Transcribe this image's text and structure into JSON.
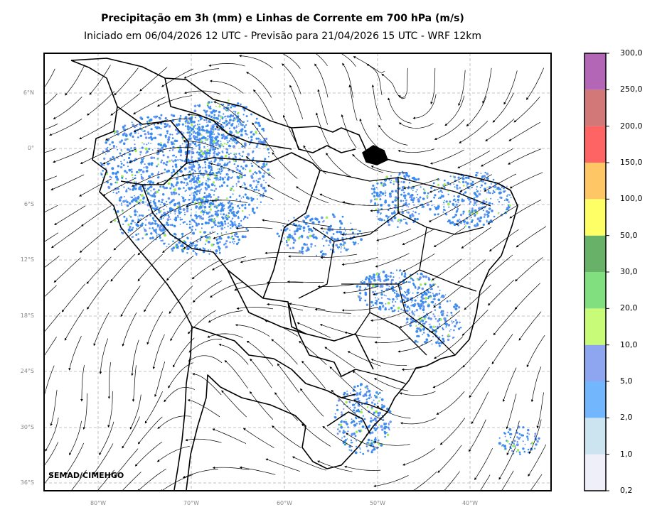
{
  "title": "Precipitação em 3h (mm) e Linhas de Corrente em 700 hPa (m/s)",
  "subtitle": "Iniciado em 06/04/2026 12 UTC - Previsão para 21/04/2026 15 UTC - WRF 12km",
  "credit": "SEMAD/CIMEHGO",
  "lat_labels": [
    "6°N",
    "0°",
    "6°S",
    "12°S",
    "18°S",
    "24°S",
    "30°S",
    "36°S"
  ],
  "lon_labels": [
    "80°W",
    "70°W",
    "60°W",
    "50°W",
    "40°W"
  ],
  "colorbar": {
    "levels": [
      "0,2",
      "1,0",
      "2,0",
      "5,0",
      "10,0",
      "20,0",
      "30,0",
      "50,0",
      "100,0",
      "150,0",
      "200,0",
      "250,0",
      "300,0"
    ],
    "colors": [
      "#efeffa",
      "#cce3f0",
      "#72b6fe",
      "#8ea5f0",
      "#c8fb78",
      "#81df7f",
      "#68b168",
      "#feff64",
      "#fec664",
      "#fe6464",
      "#d27878",
      "#b466b6"
    ]
  },
  "layer_colors": {
    "light_rain": "#3c8cf0",
    "moderate_rain": "#6e96f0",
    "heavy_rain": "#a0f050",
    "borders": "#000000",
    "streamlines": "#000000",
    "grid": "#b0b0b0"
  }
}
